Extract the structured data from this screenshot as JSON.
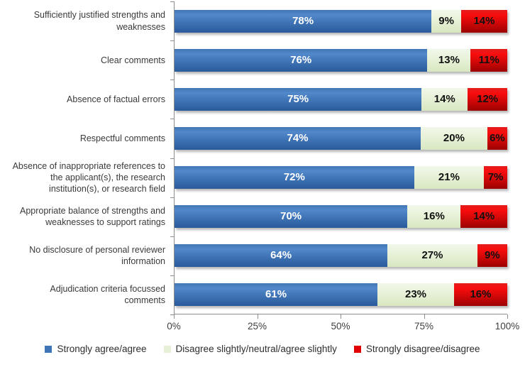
{
  "chart_data": {
    "type": "bar",
    "variant": "horizontal-stacked-100",
    "title": "",
    "xlabel": "",
    "ylabel": "",
    "xlim": [
      0,
      100
    ],
    "x_tick_labels": [
      "0%",
      "25%",
      "50%",
      "75%",
      "100%"
    ],
    "grid": false,
    "legend_position": "bottom",
    "categories": [
      "Sufficiently justified strengths and weaknesses",
      "Clear comments",
      "Absence of factual errors",
      "Respectful comments",
      "Absence of inappropriate references to the applicant(s), the research institution(s), or research field",
      "Appropriate balance of strengths and weaknesses to support ratings",
      "No disclosure of personal reviewer information",
      "Adjudication criteria focussed comments"
    ],
    "series": [
      {
        "name": "Strongly agree/agree",
        "color": "#3f74b6",
        "label_color": "#ffffff",
        "values": [
          78,
          76,
          75,
          74,
          72,
          70,
          64,
          61
        ]
      },
      {
        "name": "Disagree slightly/neutral/agree slightly",
        "color": "#e5f0d6",
        "label_color": "#111111",
        "values": [
          9,
          13,
          14,
          20,
          21,
          16,
          27,
          23
        ]
      },
      {
        "name": "Strongly disagree/disagree",
        "color": "#e00000",
        "label_color": "#111111",
        "values": [
          14,
          11,
          12,
          6,
          7,
          14,
          9,
          16
        ]
      }
    ],
    "value_suffix": "%"
  },
  "colors": {
    "axis": "#8c8c8c",
    "category_text": "#3a3a3a",
    "tick_text": "#3f3f3f",
    "background": "#ffffff"
  }
}
